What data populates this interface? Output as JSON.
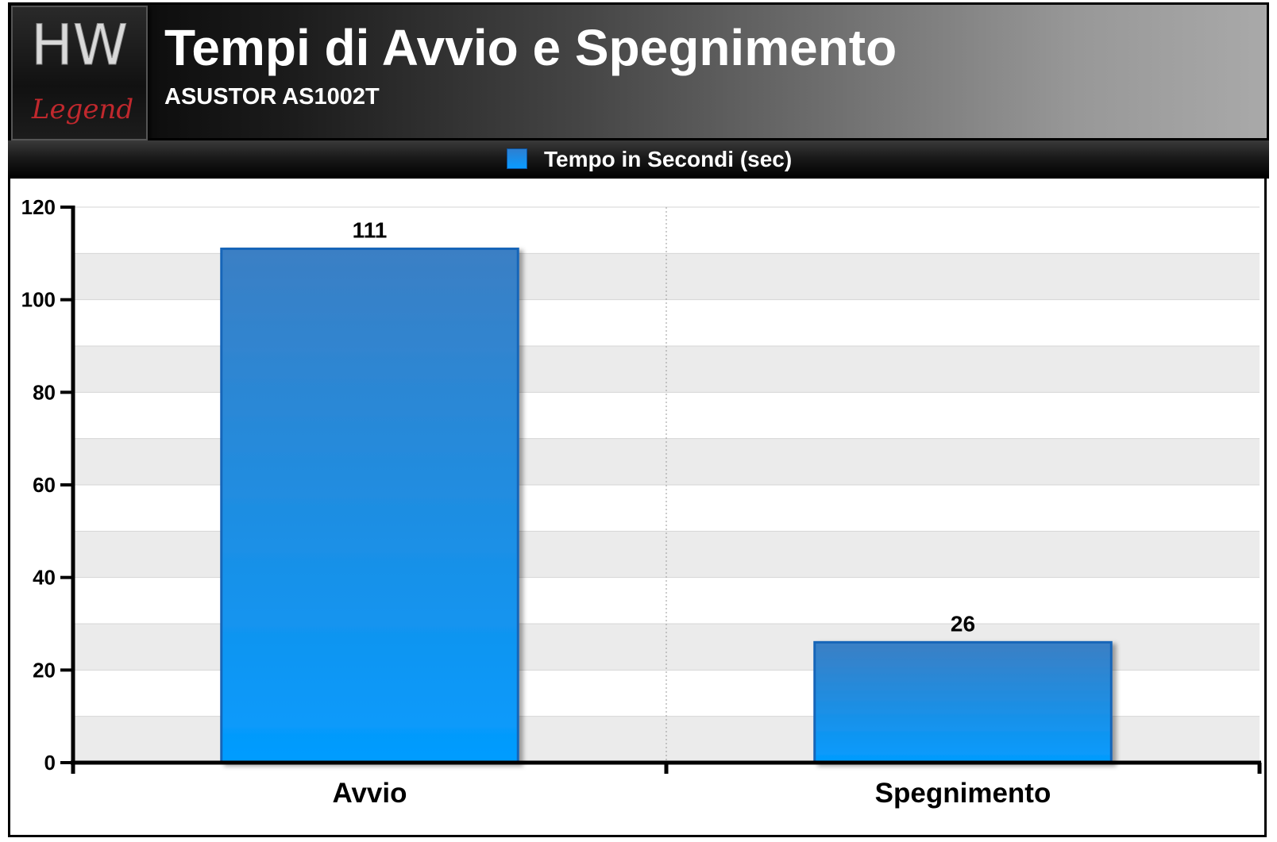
{
  "header": {
    "title": "Tempi di Avvio e Spegnimento",
    "subtitle": "ASUSTOR AS1002T",
    "logo_top": "HW",
    "logo_bottom": "Legend"
  },
  "colors": {
    "bar_top": "#3b7fc4",
    "bar_bottom": "#039cff",
    "bar_border": "#1565b8",
    "logo_red": "#c0282d"
  },
  "chart_data": {
    "type": "bar",
    "title": "Tempi di Avvio e Spegnimento",
    "subtitle": "ASUSTOR AS1002T",
    "categories": [
      "Avvio",
      "Spegnimento"
    ],
    "series": [
      {
        "name": "Tempo in Secondi (sec)",
        "values": [
          111,
          26
        ]
      }
    ],
    "data_labels": [
      "111",
      "26"
    ],
    "ylim": [
      0,
      120
    ],
    "yticks": [
      0,
      20,
      40,
      60,
      80,
      100,
      120
    ],
    "ytick_labels": [
      "0",
      "20",
      "40",
      "60",
      "80",
      "100",
      "120"
    ],
    "grid": true,
    "legend_position": "top"
  }
}
